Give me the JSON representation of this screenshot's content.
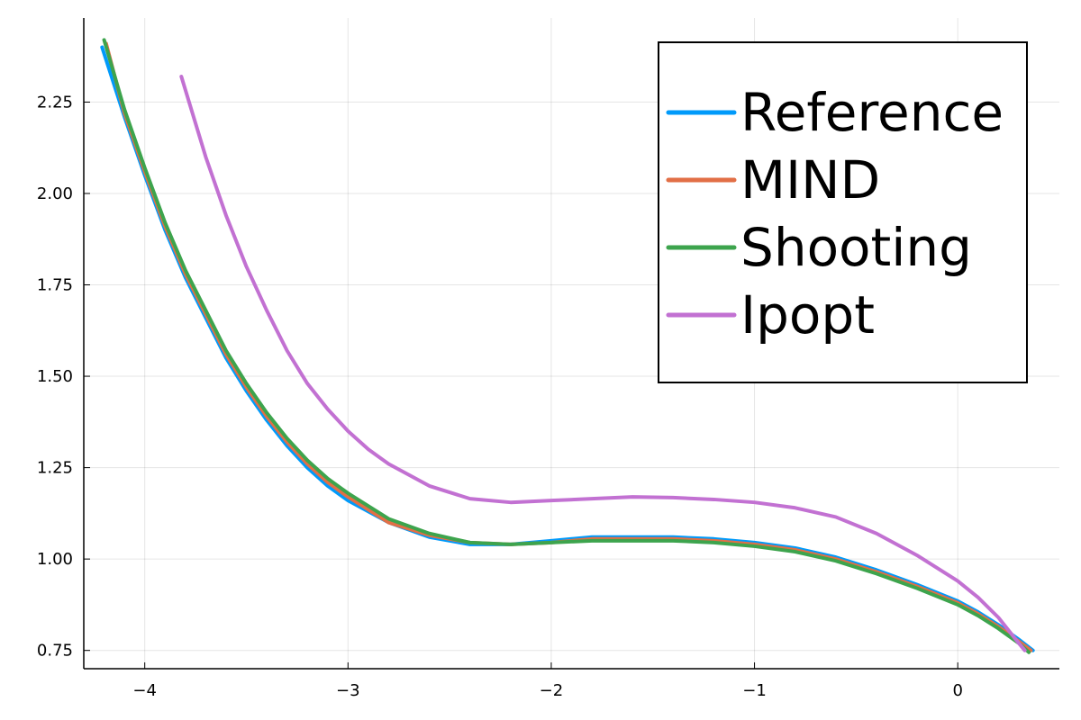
{
  "chart_data": {
    "type": "line",
    "title": "",
    "xlabel": "",
    "ylabel": "",
    "xlim": [
      -4.3,
      0.5
    ],
    "ylim": [
      0.7,
      2.48
    ],
    "grid": true,
    "legend_position": "top-right",
    "x_ticks": [
      {
        "value": -4,
        "label": "−4"
      },
      {
        "value": -3,
        "label": "−3"
      },
      {
        "value": -2,
        "label": "−2"
      },
      {
        "value": -1,
        "label": "−1"
      },
      {
        "value": 0,
        "label": "0"
      }
    ],
    "y_ticks": [
      {
        "value": 0.75,
        "label": "0.75"
      },
      {
        "value": 1.0,
        "label": "1.00"
      },
      {
        "value": 1.25,
        "label": "1.25"
      },
      {
        "value": 1.5,
        "label": "1.50"
      },
      {
        "value": 1.75,
        "label": "1.75"
      },
      {
        "value": 2.0,
        "label": "2.00"
      },
      {
        "value": 2.25,
        "label": "2.25"
      }
    ],
    "series": [
      {
        "name": "Reference",
        "color": "#009AFA",
        "points": [
          [
            -4.21,
            2.4
          ],
          [
            -4.1,
            2.21
          ],
          [
            -4.0,
            2.05
          ],
          [
            -3.9,
            1.9
          ],
          [
            -3.8,
            1.77
          ],
          [
            -3.7,
            1.66
          ],
          [
            -3.6,
            1.55
          ],
          [
            -3.5,
            1.46
          ],
          [
            -3.4,
            1.38
          ],
          [
            -3.3,
            1.31
          ],
          [
            -3.2,
            1.25
          ],
          [
            -3.1,
            1.2
          ],
          [
            -3.0,
            1.16
          ],
          [
            -2.8,
            1.1
          ],
          [
            -2.6,
            1.06
          ],
          [
            -2.4,
            1.04
          ],
          [
            -2.2,
            1.04
          ],
          [
            -2.0,
            1.05
          ],
          [
            -1.8,
            1.06
          ],
          [
            -1.6,
            1.06
          ],
          [
            -1.4,
            1.06
          ],
          [
            -1.2,
            1.055
          ],
          [
            -1.0,
            1.045
          ],
          [
            -0.8,
            1.03
          ],
          [
            -0.6,
            1.005
          ],
          [
            -0.4,
            0.97
          ],
          [
            -0.2,
            0.93
          ],
          [
            0.0,
            0.885
          ],
          [
            0.1,
            0.855
          ],
          [
            0.2,
            0.82
          ],
          [
            0.3,
            0.78
          ],
          [
            0.37,
            0.75
          ]
        ]
      },
      {
        "name": "MIND",
        "color": "#E26F46",
        "points": [
          [
            -4.19,
            2.41
          ],
          [
            -4.1,
            2.22
          ],
          [
            -4.0,
            2.06
          ],
          [
            -3.9,
            1.91
          ],
          [
            -3.8,
            1.78
          ],
          [
            -3.7,
            1.67
          ],
          [
            -3.6,
            1.56
          ],
          [
            -3.5,
            1.47
          ],
          [
            -3.4,
            1.39
          ],
          [
            -3.3,
            1.32
          ],
          [
            -3.2,
            1.26
          ],
          [
            -3.1,
            1.21
          ],
          [
            -3.0,
            1.17
          ],
          [
            -2.8,
            1.1
          ],
          [
            -2.6,
            1.065
          ],
          [
            -2.4,
            1.045
          ],
          [
            -2.2,
            1.04
          ],
          [
            -2.0,
            1.045
          ],
          [
            -1.8,
            1.055
          ],
          [
            -1.6,
            1.055
          ],
          [
            -1.4,
            1.055
          ],
          [
            -1.2,
            1.05
          ],
          [
            -1.0,
            1.04
          ],
          [
            -0.8,
            1.025
          ],
          [
            -0.6,
            1.0
          ],
          [
            -0.4,
            0.965
          ],
          [
            -0.2,
            0.925
          ],
          [
            0.0,
            0.88
          ],
          [
            0.1,
            0.85
          ],
          [
            0.2,
            0.815
          ],
          [
            0.3,
            0.775
          ],
          [
            0.36,
            0.75
          ]
        ]
      },
      {
        "name": "Shooting",
        "color": "#3DA44D",
        "points": [
          [
            -4.2,
            2.42
          ],
          [
            -4.1,
            2.23
          ],
          [
            -4.0,
            2.07
          ],
          [
            -3.9,
            1.92
          ],
          [
            -3.8,
            1.79
          ],
          [
            -3.7,
            1.68
          ],
          [
            -3.6,
            1.57
          ],
          [
            -3.5,
            1.48
          ],
          [
            -3.4,
            1.4
          ],
          [
            -3.3,
            1.33
          ],
          [
            -3.2,
            1.27
          ],
          [
            -3.1,
            1.22
          ],
          [
            -3.0,
            1.18
          ],
          [
            -2.8,
            1.11
          ],
          [
            -2.6,
            1.07
          ],
          [
            -2.4,
            1.045
          ],
          [
            -2.2,
            1.04
          ],
          [
            -2.0,
            1.045
          ],
          [
            -1.8,
            1.05
          ],
          [
            -1.6,
            1.05
          ],
          [
            -1.4,
            1.05
          ],
          [
            -1.2,
            1.045
          ],
          [
            -1.0,
            1.035
          ],
          [
            -0.8,
            1.02
          ],
          [
            -0.6,
            0.995
          ],
          [
            -0.4,
            0.96
          ],
          [
            -0.2,
            0.92
          ],
          [
            0.0,
            0.875
          ],
          [
            0.1,
            0.845
          ],
          [
            0.2,
            0.81
          ],
          [
            0.3,
            0.77
          ],
          [
            0.35,
            0.745
          ]
        ]
      },
      {
        "name": "Ipopt",
        "color": "#C271D2",
        "points": [
          [
            -3.82,
            2.32
          ],
          [
            -3.7,
            2.1
          ],
          [
            -3.6,
            1.94
          ],
          [
            -3.5,
            1.8
          ],
          [
            -3.4,
            1.68
          ],
          [
            -3.3,
            1.57
          ],
          [
            -3.2,
            1.48
          ],
          [
            -3.1,
            1.41
          ],
          [
            -3.0,
            1.35
          ],
          [
            -2.9,
            1.3
          ],
          [
            -2.8,
            1.26
          ],
          [
            -2.6,
            1.2
          ],
          [
            -2.4,
            1.165
          ],
          [
            -2.2,
            1.155
          ],
          [
            -2.0,
            1.16
          ],
          [
            -1.8,
            1.165
          ],
          [
            -1.6,
            1.17
          ],
          [
            -1.4,
            1.168
          ],
          [
            -1.2,
            1.163
          ],
          [
            -1.0,
            1.155
          ],
          [
            -0.8,
            1.14
          ],
          [
            -0.6,
            1.115
          ],
          [
            -0.4,
            1.07
          ],
          [
            -0.2,
            1.01
          ],
          [
            0.0,
            0.94
          ],
          [
            0.1,
            0.895
          ],
          [
            0.2,
            0.84
          ],
          [
            0.3,
            0.77
          ],
          [
            0.33,
            0.75
          ]
        ]
      }
    ]
  }
}
